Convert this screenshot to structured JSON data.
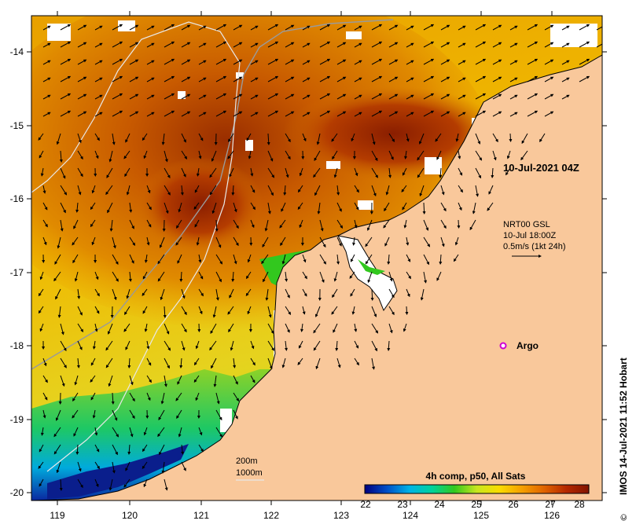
{
  "map": {
    "lon_ticks": [
      "119",
      "120",
      "121",
      "122",
      "123",
      "124",
      "125",
      "126"
    ],
    "lat_ticks": [
      "-14",
      "-15",
      "-16",
      "-17",
      "-18",
      "-19",
      "-20"
    ],
    "timestamp": "10-Jul-2021 04Z",
    "currents": {
      "line1": "NRT00 GSL",
      "line2": "10-Jul 18:00Z",
      "line3": "0.5m/s (1kt 24h)"
    },
    "argo_label": "Argo",
    "depth_contours": [
      "200m",
      "1000m"
    ],
    "colorbar": {
      "title": "4h comp, p50, All Sats",
      "labels": [
        "22",
        "23",
        "24",
        "25",
        "26",
        "27",
        "28"
      ],
      "colors": [
        "#00007f",
        "#0050c8",
        "#00b4e6",
        "#00d29b",
        "#32c81e",
        "#c8e61e",
        "#fadc00",
        "#f5a000",
        "#e06400",
        "#b42800",
        "#821400"
      ]
    },
    "credit": "IMOS 14-Jul-2021 11:52 Hobart",
    "colors": {
      "land": "#f9c89b",
      "argo": "#d000d0"
    }
  }
}
